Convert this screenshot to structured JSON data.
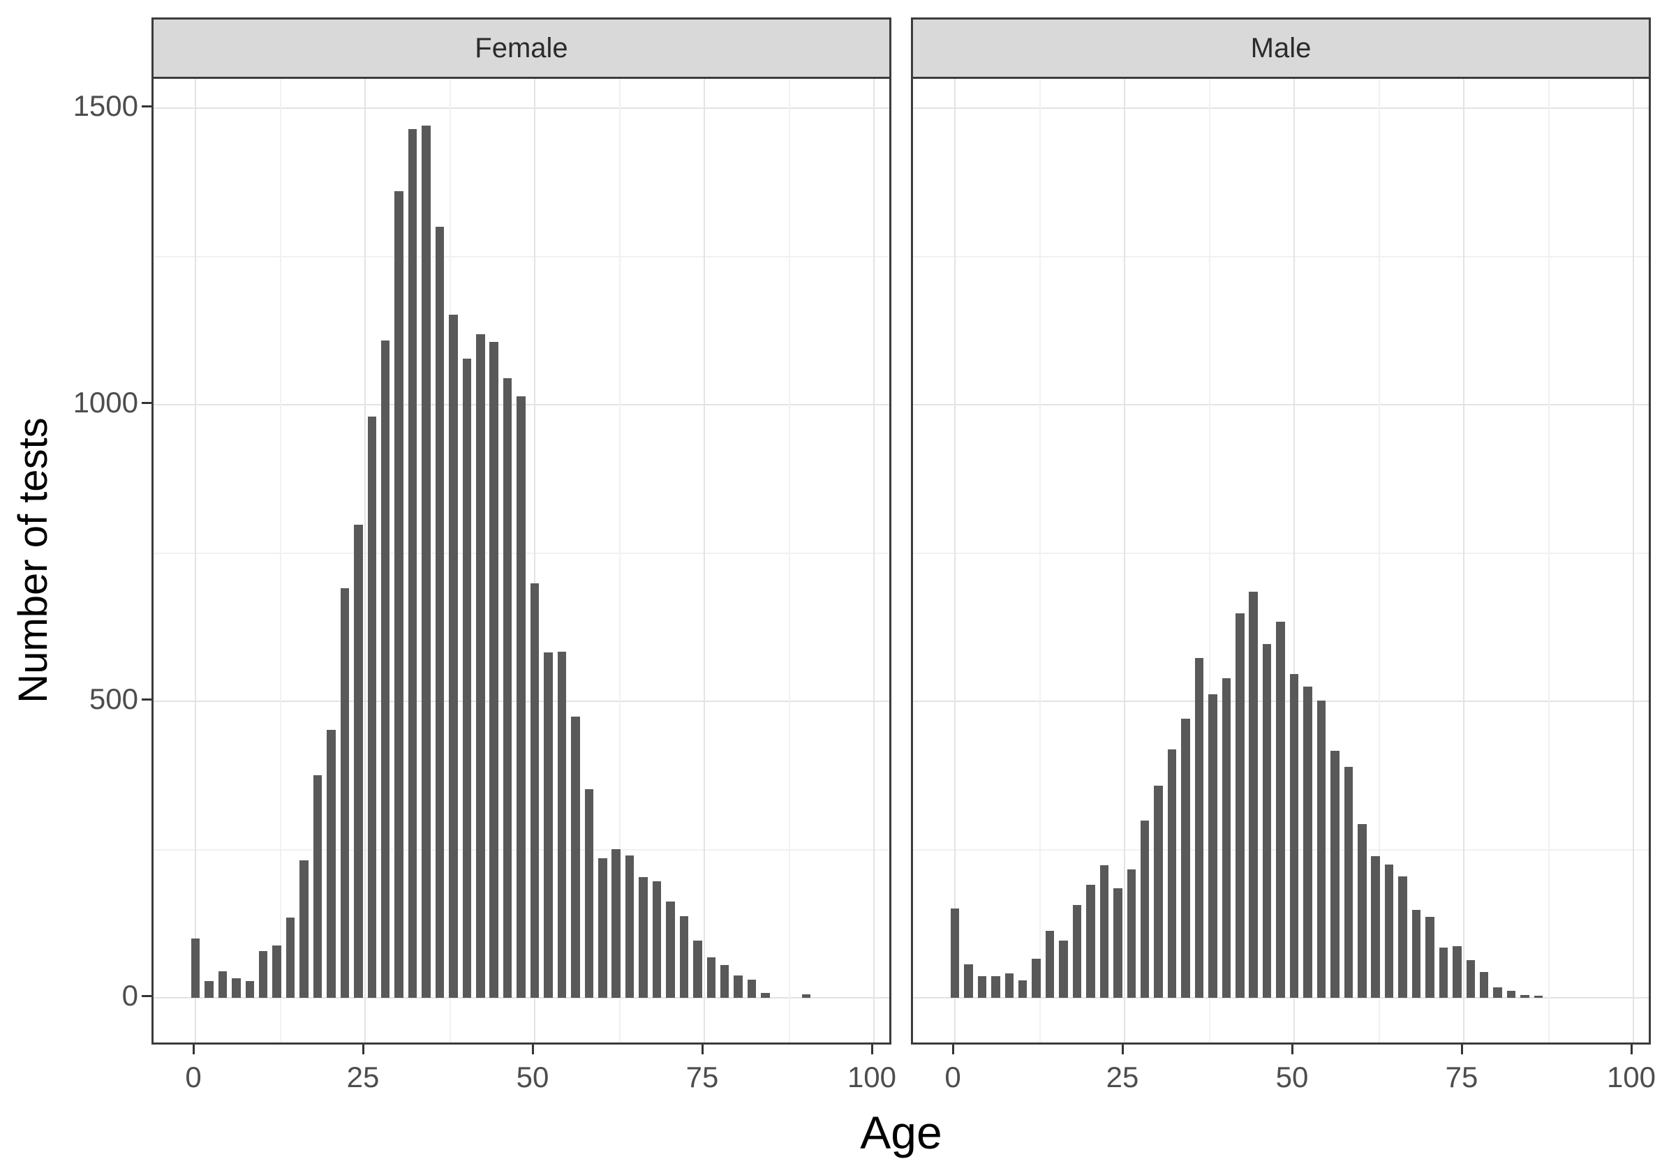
{
  "chart_data": {
    "type": "bar",
    "subtype": "faceted-histogram",
    "title": "",
    "xlabel": "Age",
    "ylabel": "Number of tests",
    "x_ticks": [
      0,
      25,
      50,
      75,
      100
    ],
    "y_ticks": [
      0,
      500,
      1000,
      1500
    ],
    "x_minor_ticks": [
      12.5,
      37.5,
      62.5,
      87.5
    ],
    "y_minor_ticks": [
      250,
      750,
      1250
    ],
    "xlim": [
      -6.2,
      103
    ],
    "ylim": [
      -82,
      1550
    ],
    "bin_width": 2,
    "legend": "none",
    "grid": "major and minor, light gray on white panel",
    "bar_color": "#595959",
    "strip_bg": "#d9d9d9",
    "panel_border_color": "#3c3c3c",
    "facets": [
      {
        "label": "Female",
        "bin_centers": [
          0,
          2,
          4,
          6,
          8,
          10,
          12,
          14,
          16,
          18,
          20,
          22,
          24,
          26,
          28,
          30,
          32,
          34,
          36,
          38,
          40,
          42,
          44,
          46,
          48,
          50,
          52,
          54,
          56,
          58,
          60,
          62,
          64,
          66,
          68,
          70,
          72,
          74,
          76,
          78,
          80,
          82,
          84,
          86,
          88,
          90
        ],
        "values": [
          100,
          28,
          45,
          33,
          28,
          79,
          88,
          135,
          232,
          375,
          452,
          690,
          798,
          980,
          1108,
          1360,
          1465,
          1470,
          1300,
          1152,
          1078,
          1119,
          1106,
          1045,
          1014,
          699,
          582,
          584,
          474,
          352,
          235,
          251,
          240,
          203,
          197,
          162,
          138,
          97,
          68,
          55,
          38,
          30,
          8,
          0,
          0,
          6
        ]
      },
      {
        "label": "Male",
        "bin_centers": [
          0,
          2,
          4,
          6,
          8,
          10,
          12,
          14,
          16,
          18,
          20,
          22,
          24,
          26,
          28,
          30,
          32,
          34,
          36,
          38,
          40,
          42,
          44,
          46,
          48,
          50,
          52,
          54,
          56,
          58,
          60,
          62,
          64,
          66,
          68,
          70,
          72,
          74,
          76,
          78,
          80,
          82,
          84,
          86
        ],
        "values": [
          150,
          56,
          36,
          36,
          41,
          29,
          66,
          113,
          97,
          156,
          191,
          223,
          185,
          216,
          299,
          358,
          419,
          470,
          573,
          512,
          539,
          648,
          685,
          597,
          634,
          546,
          525,
          501,
          416,
          389,
          293,
          239,
          225,
          205,
          148,
          136,
          85,
          87,
          64,
          44,
          18,
          12,
          5,
          4
        ]
      }
    ]
  }
}
